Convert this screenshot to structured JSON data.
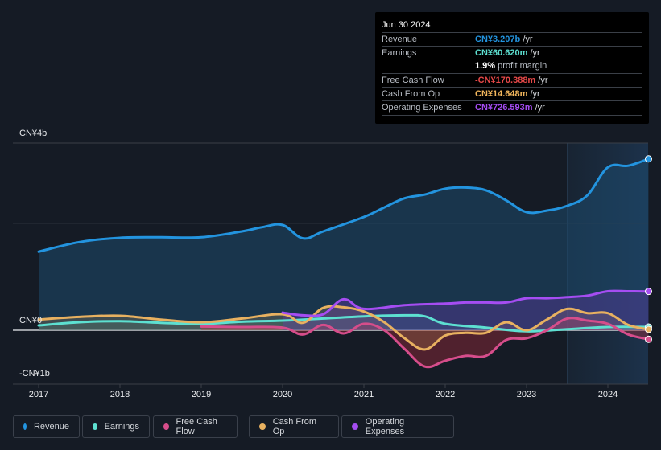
{
  "tooltip": {
    "date": "Jun 30 2024",
    "rows": [
      {
        "label": "Revenue",
        "value": "CN¥3.207b",
        "unit": " /yr",
        "color": "#2394df"
      },
      {
        "label": "Earnings",
        "value": "CN¥60.620m",
        "unit": " /yr",
        "color": "#5de0d1",
        "extra_value": "1.9%",
        "extra_text": " profit margin"
      },
      {
        "label": "Free Cash Flow",
        "value": "-CN¥170.388m",
        "unit": " /yr",
        "color": "#e64848"
      },
      {
        "label": "Cash From Op",
        "value": "CN¥14.648m",
        "unit": " /yr",
        "color": "#f2b65c"
      },
      {
        "label": "Operating Expenses",
        "value": "CN¥726.593m",
        "unit": " /yr",
        "color": "#a54df2"
      }
    ]
  },
  "legend": [
    {
      "label": "Revenue",
      "color": "#2394df"
    },
    {
      "label": "Earnings",
      "color": "#5de0d1"
    },
    {
      "label": "Free Cash Flow",
      "color": "#d64d8b"
    },
    {
      "label": "Cash From Op",
      "color": "#e8b160"
    },
    {
      "label": "Operating Expenses",
      "color": "#a54df2"
    }
  ],
  "chart_data": {
    "type": "area",
    "title": "",
    "xlabel": "",
    "ylabel": "",
    "ytick_labels": [
      "CN¥4b",
      "CN¥0",
      "-CN¥1b"
    ],
    "xtick_labels": [
      "2017",
      "2018",
      "2019",
      "2020",
      "2021",
      "2022",
      "2023",
      "2024"
    ],
    "xlim": [
      2016.7,
      2024.5
    ],
    "ylim": [
      -1.0,
      3.5
    ],
    "units": "CN¥ billions",
    "highlight_range": [
      2023.5,
      2024.5
    ],
    "grid": true,
    "legend_position": "bottom",
    "series": [
      {
        "name": "Revenue",
        "color": "#2394df",
        "x": [
          2017,
          2017.5,
          2018,
          2018.5,
          2019,
          2019.5,
          2019.75,
          2020,
          2020.25,
          2020.5,
          2021,
          2021.25,
          2021.5,
          2021.75,
          2022,
          2022.25,
          2022.5,
          2022.75,
          2023,
          2023.25,
          2023.5,
          2023.75,
          2024,
          2024.25,
          2024.5
        ],
        "y": [
          1.47,
          1.65,
          1.73,
          1.74,
          1.74,
          1.85,
          1.93,
          1.97,
          1.72,
          1.85,
          2.12,
          2.3,
          2.47,
          2.54,
          2.65,
          2.67,
          2.62,
          2.43,
          2.21,
          2.24,
          2.33,
          2.53,
          3.05,
          3.08,
          3.207
        ]
      },
      {
        "name": "Earnings",
        "color": "#5de0d1",
        "x": [
          2017,
          2017.5,
          2018,
          2018.5,
          2019,
          2019.5,
          2020,
          2020.5,
          2021,
          2021.5,
          2021.75,
          2022,
          2022.5,
          2023,
          2023.5,
          2024,
          2024.5
        ],
        "y": [
          0.09,
          0.15,
          0.17,
          0.14,
          0.12,
          0.16,
          0.18,
          0.22,
          0.26,
          0.28,
          0.26,
          0.12,
          0.05,
          -0.02,
          0.02,
          0.06,
          0.0606
        ]
      },
      {
        "name": "Free Cash Flow",
        "color": "#d64d8b",
        "x": [
          2019,
          2019.5,
          2020,
          2020.25,
          2020.5,
          2020.75,
          2021,
          2021.25,
          2021.5,
          2021.75,
          2022,
          2022.25,
          2022.5,
          2022.75,
          2023,
          2023.25,
          2023.5,
          2023.75,
          2024,
          2024.25,
          2024.5
        ],
        "y": [
          0.07,
          0.06,
          0.05,
          -0.08,
          0.1,
          -0.06,
          0.12,
          0.0,
          -0.35,
          -0.68,
          -0.57,
          -0.48,
          -0.48,
          -0.18,
          -0.15,
          0.0,
          0.22,
          0.18,
          0.12,
          -0.08,
          -0.17
        ]
      },
      {
        "name": "Cash From Op",
        "color": "#e8b160",
        "x": [
          2017,
          2017.5,
          2018,
          2018.5,
          2019,
          2019.5,
          2020,
          2020.25,
          2020.5,
          2020.75,
          2021,
          2021.25,
          2021.5,
          2021.75,
          2022,
          2022.25,
          2022.5,
          2022.75,
          2023,
          2023.25,
          2023.5,
          2023.75,
          2024,
          2024.25,
          2024.5
        ],
        "y": [
          0.2,
          0.25,
          0.27,
          0.2,
          0.15,
          0.22,
          0.3,
          0.14,
          0.42,
          0.43,
          0.35,
          0.15,
          -0.15,
          -0.36,
          -0.1,
          -0.05,
          -0.05,
          0.15,
          0.0,
          0.2,
          0.4,
          0.32,
          0.32,
          0.1,
          0.0146
        ]
      },
      {
        "name": "Operating Expenses",
        "color": "#a54df2",
        "x": [
          2020,
          2020.25,
          2020.5,
          2020.75,
          2021,
          2021.5,
          2022,
          2022.25,
          2022.5,
          2022.75,
          2023,
          2023.25,
          2023.5,
          2023.75,
          2024,
          2024.25,
          2024.5
        ],
        "y": [
          0.33,
          0.28,
          0.3,
          0.58,
          0.4,
          0.47,
          0.5,
          0.52,
          0.52,
          0.52,
          0.6,
          0.6,
          0.62,
          0.65,
          0.73,
          0.73,
          0.7266
        ]
      }
    ]
  }
}
